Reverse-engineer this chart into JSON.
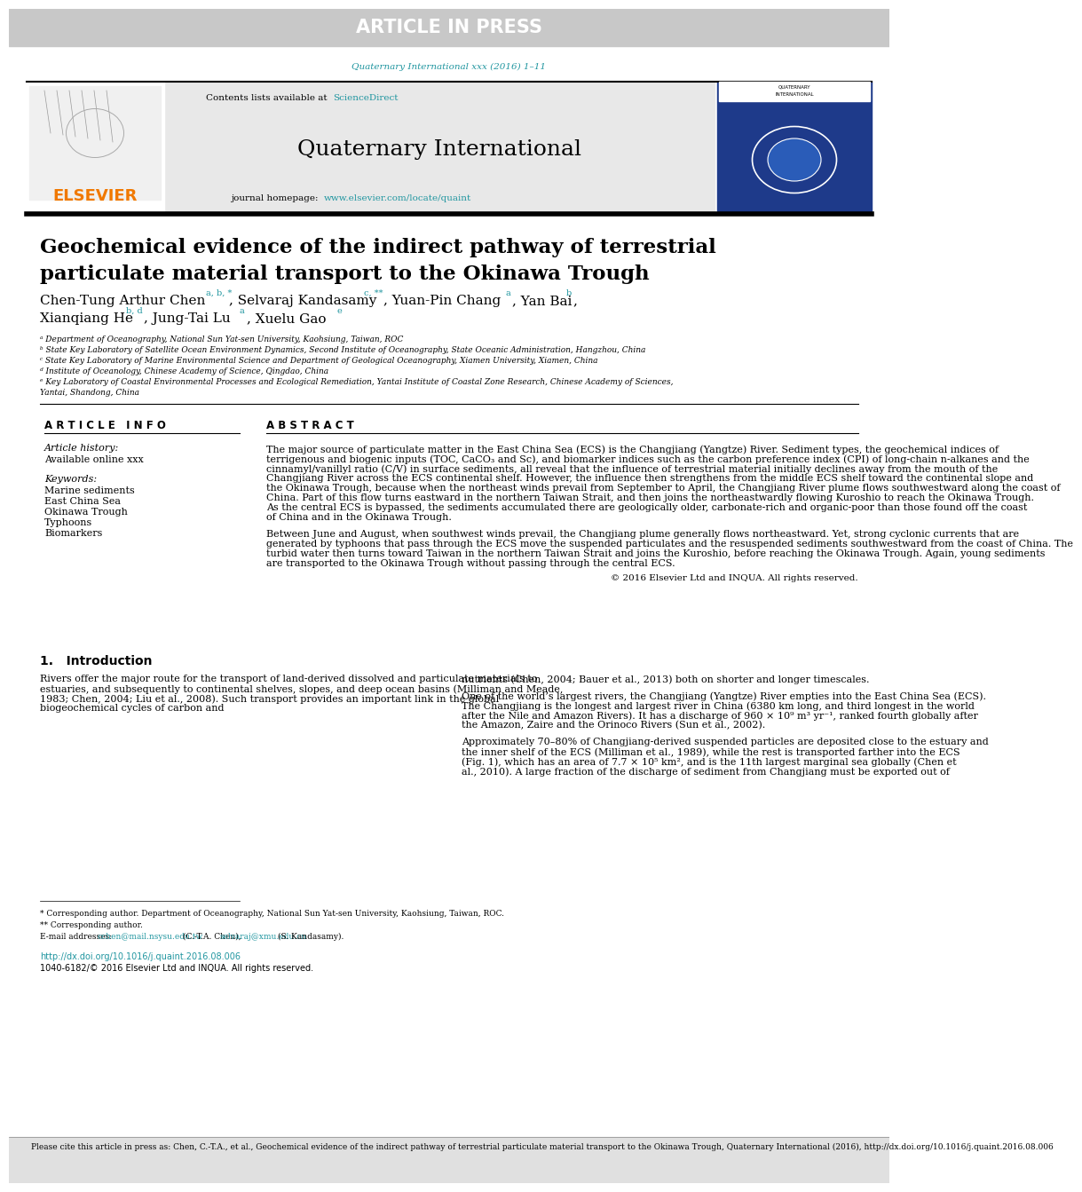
{
  "article_in_press_bg": "#c8c8c8",
  "article_in_press_text": "ARTICLE IN PRESS",
  "journal_ref_color": "#2196a0",
  "journal_ref": "Quaternary International xxx (2016) 1–11",
  "elsevier_color": "#f07800",
  "elsevier_text": "ELSEVIER",
  "journal_name": "Quaternary International",
  "contents_line": "Contents lists available at",
  "sciencedirect": "ScienceDirect",
  "homepage_line": "journal homepage:",
  "homepage_url": "www.elsevier.com/locate/quaint",
  "paper_title_line1": "Geochemical evidence of the indirect pathway of terrestrial",
  "paper_title_line2": "particulate material transport to the Okinawa Trough",
  "affil_a": "ᵃ Department of Oceanography, National Sun Yat-sen University, Kaohsiung, Taiwan, ROC",
  "affil_b": "ᵇ State Key Laboratory of Satellite Ocean Environment Dynamics, Second Institute of Oceanography, State Oceanic Administration, Hangzhou, China",
  "affil_c": "ᶜ State Key Laboratory of Marine Environmental Science and Department of Geological Oceanography, Xiamen University, Xiamen, China",
  "affil_d": "ᵈ Institute of Oceanology, Chinese Academy of Science, Qingdao, China",
  "affil_e": "ᵉ Key Laboratory of Coastal Environmental Processes and Ecological Remediation, Yantai Institute of Coastal Zone Research, Chinese Academy of Sciences,",
  "affil_e2": "Yantai, Shandong, China",
  "article_info_header": "A R T I C L E   I N F O",
  "abstract_header": "A B S T R A C T",
  "article_history": "Article history:",
  "available_online": "Available online xxx",
  "keywords_header": "Keywords:",
  "keyword1": "Marine sediments",
  "keyword2": "East China Sea",
  "keyword3": "Okinawa Trough",
  "keyword4": "Typhoons",
  "keyword5": "Biomarkers",
  "abstract_text": "The major source of particulate matter in the East China Sea (ECS) is the Changjiang (Yangtze) River. Sediment types, the geochemical indices of terrigenous and biogenic inputs (TOC, CaCO₃ and Sc), and biomarker indices such as the carbon preference index (CPI) of long-chain n-alkanes and the cinnamyl/vanillyl ratio (C/V) in surface sediments, all reveal that the influence of terrestrial material initially declines away from the mouth of the Changjiang River across the ECS continental shelf. However, the influence then strengthens from the middle ECS shelf toward the continental slope and the Okinawa Trough, because when the northeast winds prevail from September to April, the Changjiang River plume flows southwestward along the coast of China. Part of this flow turns eastward in the northern Taiwan Strait, and then joins the northeastwardly flowing Kuroshio to reach the Okinawa Trough. As the central ECS is bypassed, the sediments accumulated there are geologically older, carbonate-rich and organic-poor than those found off the coast of China and in the Okinawa Trough.",
  "abstract_text2": "Between June and August, when southwest winds prevail, the Changjiang plume generally flows northeastward. Yet, strong cyclonic currents that are generated by typhoons that pass through the ECS move the suspended particulates and the resuspended sediments southwestward from the coast of China. The turbid water then turns toward Taiwan in the northern Taiwan Strait and joins the Kuroshio, before reaching the Okinawa Trough. Again, young sediments are transported to the Okinawa Trough without passing through the central ECS.",
  "copyright": "© 2016 Elsevier Ltd and INQUA. All rights reserved.",
  "section1_header": "1.   Introduction",
  "intro_col1_para1": "Rivers offer the major route for the transport of land-derived dissolved and particulate materials to estuaries, and subsequently to continental shelves, slopes, and deep ocean basins (Milliman and Meade, 1983; Chen, 2004; Liu et al., 2008). Such transport provides an important link in the global biogeochemical cycles of carbon and",
  "intro_col2_para1": "nutrients (Chen, 2004; Bauer et al., 2013) both on shorter and longer timescales.",
  "intro_col2_para2": "One of the world’s largest rivers, the Changjiang (Yangtze) River empties into the East China Sea (ECS). The Changjiang is the longest and largest river in China (6380 km long, and third longest in the world after the Nile and Amazon Rivers). It has a discharge of 960 × 10⁹ m³ yr⁻¹, ranked fourth globally after the Amazon, Zaire and the Orinoco Rivers (Sun et al., 2002).",
  "intro_col2_para3": "Approximately 70–80% of Changjiang-derived suspended particles are deposited close to the estuary and the inner shelf of the ECS (Milliman et al., 1989), while the rest is transported farther into the ECS (Fig. 1), which has an area of 7.7 × 10⁵ km², and is the 11th largest marginal sea globally (Chen et al., 2010). A large fraction of the discharge of sediment from Changjiang must be exported out of",
  "corr_author1": "* Corresponding author. Department of Oceanography, National Sun Yat-sen University, Kaohsiung, Taiwan, ROC.",
  "corr_author2": "** Corresponding author.",
  "email_label": "E-mail addresses:",
  "email1": "cchen@mail.nsysu.edu.tw",
  "email_mid": "(C.-T.A. Chen),",
  "email2": "selvaraj@xmu.edu.cn",
  "email_end": "(S. Kandasamy).",
  "doi_text": "http://dx.doi.org/10.1016/j.quaint.2016.08.006",
  "issn_text": "1040-6182/© 2016 Elsevier Ltd and INQUA. All rights reserved.",
  "footer_text": "Please cite this article in press as: Chen, C.-T.A., et al., Geochemical evidence of the indirect pathway of terrestrial particulate material transport to the Okinawa Trough, Quaternary International (2016), http://dx.doi.org/10.1016/j.quaint.2016.08.006",
  "link_color": "#2196a0",
  "bg_color": "#ffffff",
  "journal_header_bg": "#e8e8e8"
}
